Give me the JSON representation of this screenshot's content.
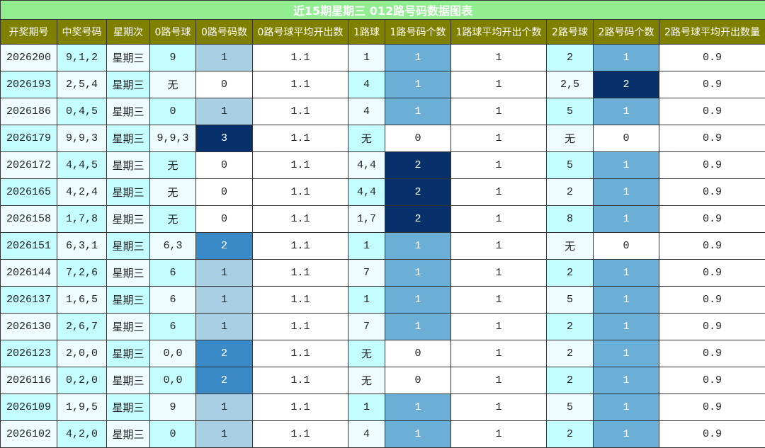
{
  "title": "近15期星期三 012路号码数据图表",
  "table": {
    "header": [
      "开奖期号",
      "中奖号码",
      "星期次",
      "0路号球",
      "0路号码数",
      "0路号球平均开出数",
      "1路球",
      "1路号码个数",
      "1路球平均开出个数",
      "2路号球",
      "2路号码个数",
      "2路号球平均开出数量"
    ],
    "rows": [
      [
        "2026200",
        "9,1,2",
        "星期三",
        "9",
        "1",
        "1.1",
        "1",
        "1",
        "1",
        "2",
        "1",
        "0.9"
      ],
      [
        "2026193",
        "2,5,4",
        "星期三",
        "无",
        "0",
        "1.1",
        "4",
        "1",
        "1",
        "2,5",
        "2",
        "0.9"
      ],
      [
        "2026186",
        "0,4,5",
        "星期三",
        "0",
        "1",
        "1.1",
        "4",
        "1",
        "1",
        "5",
        "1",
        "0.9"
      ],
      [
        "2026179",
        "9,9,3",
        "星期三",
        "9,9,3",
        "3",
        "1.1",
        "无",
        "0",
        "1",
        "无",
        "0",
        "0.9"
      ],
      [
        "2026172",
        "4,4,5",
        "星期三",
        "无",
        "0",
        "1.1",
        "4,4",
        "2",
        "1",
        "5",
        "1",
        "0.9"
      ],
      [
        "2026165",
        "4,2,4",
        "星期三",
        "无",
        "0",
        "1.1",
        "4,4",
        "2",
        "1",
        "2",
        "1",
        "0.9"
      ],
      [
        "2026158",
        "1,7,8",
        "星期三",
        "无",
        "0",
        "1.1",
        "1,7",
        "2",
        "1",
        "8",
        "1",
        "0.9"
      ],
      [
        "2026151",
        "6,3,1",
        "星期三",
        "6,3",
        "2",
        "1.1",
        "1",
        "1",
        "1",
        "无",
        "0",
        "0.9"
      ],
      [
        "2026144",
        "7,2,6",
        "星期三",
        "6",
        "1",
        "1.1",
        "7",
        "1",
        "1",
        "2",
        "1",
        "0.9"
      ],
      [
        "2026137",
        "1,6,5",
        "星期三",
        "6",
        "1",
        "1.1",
        "1",
        "1",
        "1",
        "5",
        "1",
        "0.9"
      ],
      [
        "2026130",
        "2,6,7",
        "星期三",
        "6",
        "1",
        "1.1",
        "7",
        "1",
        "1",
        "2",
        "1",
        "0.9"
      ],
      [
        "2026123",
        "2,0,0",
        "星期三",
        "0,0",
        "2",
        "1.1",
        "无",
        "0",
        "1",
        "2",
        "1",
        "0.9"
      ],
      [
        "2026116",
        "0,2,0",
        "星期三",
        "0,0",
        "2",
        "1.1",
        "无",
        "0",
        "1",
        "2",
        "1",
        "0.9"
      ],
      [
        "2026109",
        "1,9,5",
        "星期三",
        "9",
        "1",
        "1.1",
        "1",
        "1",
        "1",
        "5",
        "1",
        "0.9"
      ],
      [
        "2026102",
        "4,2,0",
        "星期三",
        "0",
        "1",
        "1.1",
        "4",
        "1",
        "1",
        "2",
        "1",
        "0.9"
      ]
    ]
  }
}
